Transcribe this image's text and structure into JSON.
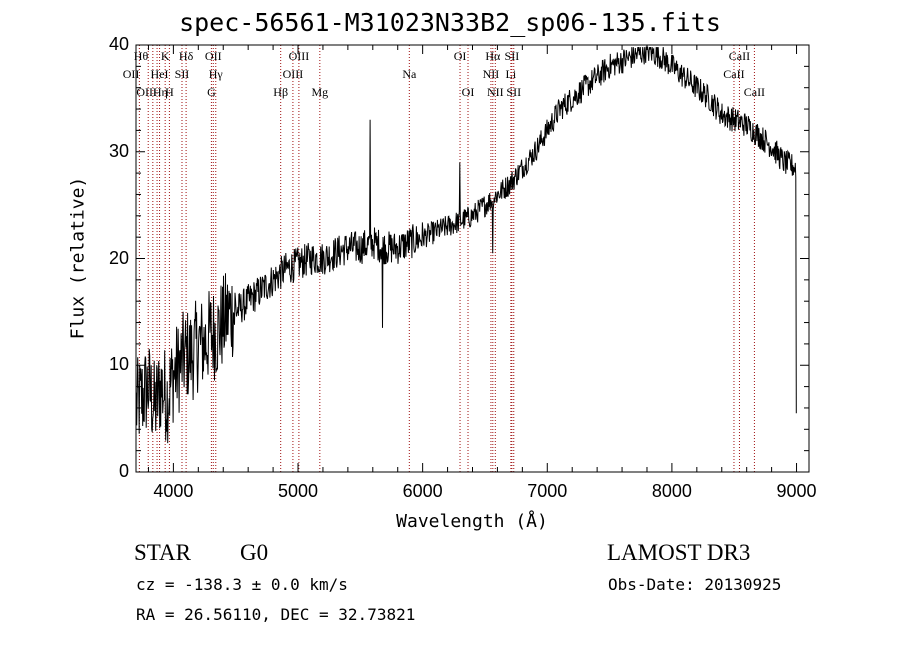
{
  "title": "spec-56561-M31023N33B2_sp06-135.fits",
  "object": {
    "class": "STAR",
    "subclass": "G0"
  },
  "survey": "LAMOST DR3",
  "cz_text": "cz = -138.3 ± 0.0 km/s",
  "obs_date_text": "Obs-Date: 20130925",
  "coords_text": "RA =  26.56110, DEC =  32.73821",
  "chart_data": {
    "type": "line",
    "title": "spec-56561-M31023N33B2_sp06-135.fits",
    "xlabel": "Wavelength (Å)",
    "ylabel": "Flux (relative)",
    "xlim": [
      3700,
      9100
    ],
    "ylim": [
      0,
      40
    ],
    "xticks": [
      4000,
      5000,
      6000,
      7000,
      8000,
      9000
    ],
    "yticks": [
      0,
      10,
      20,
      30,
      40
    ],
    "series": [
      {
        "name": "flux",
        "x": [
          3700,
          3750,
          3800,
          3850,
          3900,
          3950,
          4000,
          4050,
          4100,
          4150,
          4200,
          4250,
          4300,
          4350,
          4400,
          4450,
          4500,
          4600,
          4700,
          4800,
          4900,
          5000,
          5100,
          5200,
          5300,
          5400,
          5500,
          5600,
          5700,
          5800,
          5900,
          6000,
          6100,
          6200,
          6300,
          6400,
          6500,
          6600,
          6700,
          6800,
          6900,
          7000,
          7100,
          7200,
          7300,
          7400,
          7500,
          7600,
          7700,
          7800,
          7900,
          8000,
          8100,
          8200,
          8300,
          8400,
          8500,
          8600,
          8700,
          8800,
          8900,
          9000
        ],
        "y": [
          6,
          7,
          8,
          6,
          8,
          7,
          9,
          10,
          11,
          11,
          12,
          12,
          13,
          13,
          14,
          15,
          15,
          16,
          17,
          18,
          19,
          19.5,
          20,
          20,
          20.5,
          21,
          21,
          21.5,
          21,
          21,
          21.5,
          22,
          22.5,
          23,
          23.5,
          24,
          25,
          26,
          27,
          28.5,
          30,
          32,
          34,
          35,
          36,
          37,
          38,
          38.5,
          39,
          39.5,
          39,
          38,
          37,
          36,
          35,
          33.5,
          33,
          32.5,
          31.5,
          30.5,
          29,
          28.5
        ]
      }
    ],
    "spikes": [
      {
        "x": 5577,
        "y": 33
      },
      {
        "x": 6300,
        "y": 29
      },
      {
        "x": 5680,
        "y": 13.5
      },
      {
        "x": 6563,
        "y": 20.5
      },
      {
        "x": 9000,
        "y": 5.5
      }
    ],
    "line_markers": [
      {
        "label": "Hθ",
        "x": 3798,
        "row": 0,
        "side": "left"
      },
      {
        "label": "K",
        "x": 3934,
        "row": 0,
        "side": "center"
      },
      {
        "label": "Hδ",
        "x": 4102,
        "row": 0,
        "side": "center"
      },
      {
        "label": "OII",
        "x": 4320,
        "row": 0,
        "side": "center"
      },
      {
        "label": "OIII",
        "x": 5007,
        "row": 0,
        "side": "center"
      },
      {
        "label": "OI",
        "x": 6300,
        "row": 0,
        "side": "center"
      },
      {
        "label": "Hα",
        "x": 6563,
        "row": 0,
        "side": "center"
      },
      {
        "label": "SII",
        "x": 6716,
        "row": 0,
        "side": "center"
      },
      {
        "label": "CaII",
        "x": 8542,
        "row": 0,
        "side": "center"
      },
      {
        "label": "OII",
        "x": 3727,
        "row": 1,
        "side": "left"
      },
      {
        "label": "HeI",
        "x": 3889,
        "row": 1,
        "side": "center"
      },
      {
        "label": "SII",
        "x": 4069,
        "row": 1,
        "side": "center"
      },
      {
        "label": "Hγ",
        "x": 4340,
        "row": 1,
        "side": "center"
      },
      {
        "label": "OIII",
        "x": 4959,
        "row": 1,
        "side": "center"
      },
      {
        "label": "Na",
        "x": 5893,
        "row": 1,
        "side": "center"
      },
      {
        "label": "NII",
        "x": 6548,
        "row": 1,
        "side": "center"
      },
      {
        "label": "Li",
        "x": 6708,
        "row": 1,
        "side": "center"
      },
      {
        "label": "CaII",
        "x": 8498,
        "row": 1,
        "side": "center"
      },
      {
        "label": "OIII",
        "x": 3869,
        "row": 2,
        "side": "left"
      },
      {
        "label": "Hη",
        "x": 3835,
        "row": 2,
        "side": "right"
      },
      {
        "label": "H",
        "x": 3968,
        "row": 2,
        "side": "center"
      },
      {
        "label": "G",
        "x": 4305,
        "row": 2,
        "side": "center"
      },
      {
        "label": "Hβ",
        "x": 4861,
        "row": 2,
        "side": "center"
      },
      {
        "label": "Mg",
        "x": 5175,
        "row": 2,
        "side": "center"
      },
      {
        "label": "OI",
        "x": 6364,
        "row": 2,
        "side": "center"
      },
      {
        "label": "NII",
        "x": 6583,
        "row": 2,
        "side": "center"
      },
      {
        "label": "SII",
        "x": 6731,
        "row": 2,
        "side": "center"
      },
      {
        "label": "CaII",
        "x": 8662,
        "row": 2,
        "side": "center"
      }
    ],
    "line_color": "#000000",
    "marker_color": "#a01010"
  }
}
